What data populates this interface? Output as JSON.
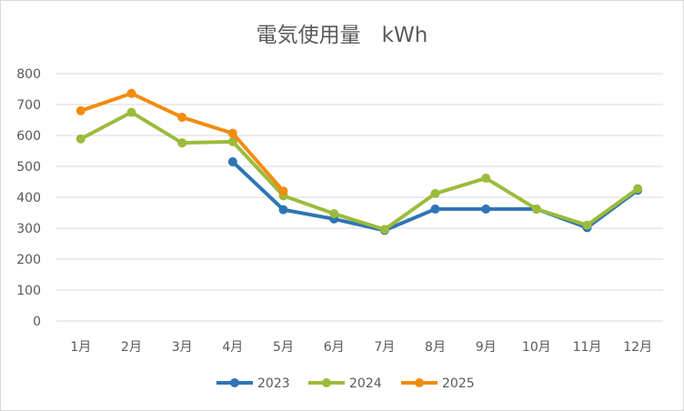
{
  "chart_data": {
    "type": "line",
    "title": "電気使用量　kWh",
    "xlabel": "",
    "ylabel": "",
    "categories": [
      "1月",
      "2月",
      "3月",
      "4月",
      "5月",
      "6月",
      "7月",
      "8月",
      "9月",
      "10月",
      "11月",
      "12月"
    ],
    "ylim": [
      0,
      800
    ],
    "yticks": [
      0,
      100,
      200,
      300,
      400,
      500,
      600,
      700,
      800
    ],
    "grid": true,
    "legend_position": "bottom",
    "series": [
      {
        "name": "2023",
        "color": "#2e75b6",
        "values": [
          null,
          null,
          null,
          515,
          360,
          330,
          293,
          362,
          362,
          362,
          302,
          423
        ]
      },
      {
        "name": "2024",
        "color": "#9bbb3b",
        "values": [
          589,
          675,
          576,
          580,
          405,
          347,
          296,
          412,
          462,
          362,
          310,
          428
        ]
      },
      {
        "name": "2025",
        "color": "#f28c0f",
        "values": [
          680,
          736,
          659,
          607,
          420,
          null,
          null,
          null,
          null,
          null,
          null,
          null
        ]
      }
    ]
  }
}
